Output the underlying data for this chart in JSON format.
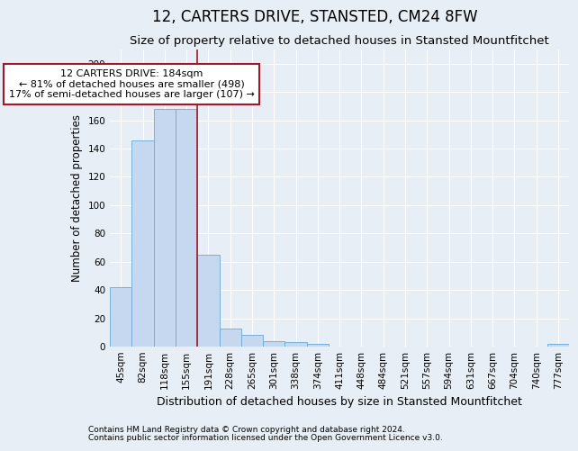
{
  "title": "12, CARTERS DRIVE, STANSTED, CM24 8FW",
  "subtitle": "Size of property relative to detached houses in Stansted Mountfitchet",
  "xlabel": "Distribution of detached houses by size in Stansted Mountfitchet",
  "ylabel": "Number of detached properties",
  "footnote1": "Contains HM Land Registry data © Crown copyright and database right 2024.",
  "footnote2": "Contains public sector information licensed under the Open Government Licence v3.0.",
  "bar_labels": [
    "45sqm",
    "82sqm",
    "118sqm",
    "155sqm",
    "191sqm",
    "228sqm",
    "265sqm",
    "301sqm",
    "338sqm",
    "374sqm",
    "411sqm",
    "448sqm",
    "484sqm",
    "521sqm",
    "557sqm",
    "594sqm",
    "631sqm",
    "667sqm",
    "704sqm",
    "740sqm",
    "777sqm"
  ],
  "bar_values": [
    42,
    146,
    168,
    168,
    65,
    13,
    8,
    4,
    3,
    2,
    0,
    0,
    0,
    0,
    0,
    0,
    0,
    0,
    0,
    0,
    2
  ],
  "bar_color": "#c5d8f0",
  "bar_edge_color": "#6aaad4",
  "ref_line_x": 3.5,
  "reference_line_color": "#a0182a",
  "annotation_line1": "12 CARTERS DRIVE: 184sqm",
  "annotation_line2": "← 81% of detached houses are smaller (498)",
  "annotation_line3": "17% of semi-detached houses are larger (107) →",
  "annotation_box_color": "#a0182a",
  "ylim": [
    0,
    210
  ],
  "yticks": [
    0,
    20,
    40,
    60,
    80,
    100,
    120,
    140,
    160,
    180,
    200
  ],
  "bg_color": "#e8eef5",
  "plot_bg_color": "#e8eef5",
  "grid_color": "#ffffff",
  "title_fontsize": 12,
  "subtitle_fontsize": 9.5,
  "xlabel_fontsize": 9,
  "ylabel_fontsize": 8.5,
  "tick_fontsize": 7.5,
  "annotation_fontsize": 8,
  "footnote_fontsize": 6.5
}
